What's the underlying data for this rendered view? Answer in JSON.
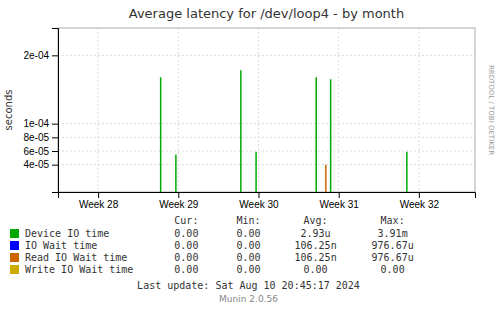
{
  "chart_data": {
    "type": "stem",
    "title": "Average latency for /dev/loop4 - by month",
    "ylabel": "seconds",
    "xlim": [
      -0.5,
      4.7
    ],
    "xticks": [
      {
        "value": 0,
        "label": "Week 28"
      },
      {
        "value": 1,
        "label": "Week 29"
      },
      {
        "value": 2,
        "label": "Week 30"
      },
      {
        "value": 3,
        "label": "Week 31"
      },
      {
        "value": 4,
        "label": "Week 32"
      }
    ],
    "ylim": [
      0,
      0.00024
    ],
    "yticks": [
      {
        "value": 4e-05,
        "label": "4e-05"
      },
      {
        "value": 6e-05,
        "label": "6e-05"
      },
      {
        "value": 8e-05,
        "label": "8e-05"
      },
      {
        "value": 0.0001,
        "label": "1e-04"
      },
      {
        "value": 0.0002,
        "label": "2e-04"
      }
    ],
    "grid": true,
    "legend": "bottom",
    "stat_headers": [
      "Cur:",
      "Min:",
      "Avg:",
      "Max:"
    ],
    "series": [
      {
        "name": "Device IO time",
        "color": "#00aa00",
        "x": [
          0.78,
          0.97,
          1.78,
          1.97,
          2.72,
          2.9,
          3.85
        ],
        "values": [
          0.000168,
          5.5e-05,
          0.000178,
          5.9e-05,
          0.000168,
          0.000165,
          5.9e-05
        ],
        "stats": [
          "0.00",
          "0.00",
          "2.93u",
          "3.91m"
        ]
      },
      {
        "name": "IO Wait time",
        "color": "#0000ff",
        "x": [],
        "values": [],
        "stats": [
          "0.00",
          "0.00",
          "106.25n",
          "976.67u"
        ]
      },
      {
        "name": "Read IO Wait time",
        "color": "#cc6600",
        "x": [
          2.84
        ],
        "values": [
          4e-05
        ],
        "stats": [
          "0.00",
          "0.00",
          "106.25n",
          "976.67u"
        ]
      },
      {
        "name": "Write IO Wait time",
        "color": "#ccaa00",
        "x": [],
        "values": [],
        "stats": [
          "0.00",
          "0.00",
          "0.00",
          "0.00"
        ]
      }
    ],
    "annotations": [
      "Last update: Sat Aug 10 20:45:17 2024",
      "Munin 2.0.56",
      "RRDTOOL / TOBI OETIKER"
    ]
  }
}
